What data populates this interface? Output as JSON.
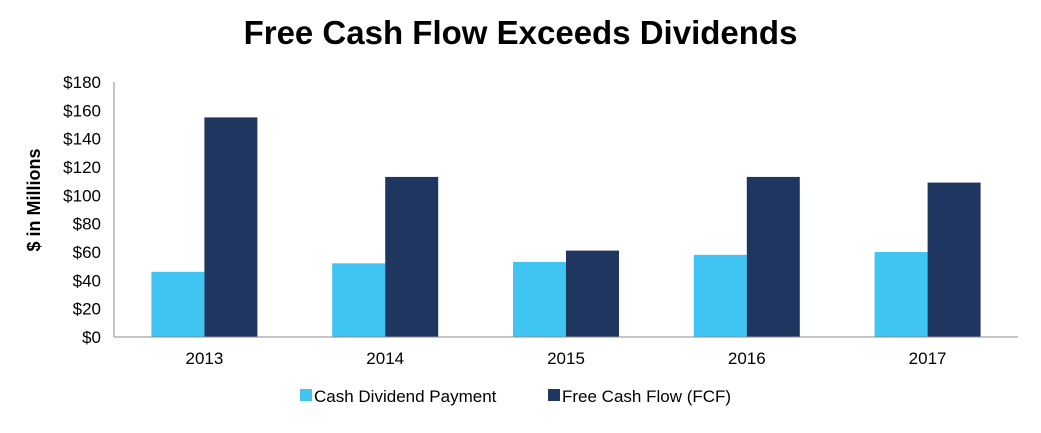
{
  "chart_data": {
    "type": "bar",
    "title": "Free Cash Flow Exceeds Dividends",
    "xlabel": "",
    "ylabel": "$ in Millions",
    "categories": [
      "2013",
      "2014",
      "2015",
      "2016",
      "2017"
    ],
    "series": [
      {
        "name": "Cash Dividend Payment",
        "color": "#40C4F2",
        "values": [
          46,
          52,
          53,
          58,
          60
        ]
      },
      {
        "name": "Free Cash Flow (FCF)",
        "color": "#1F3760",
        "values": [
          155,
          113,
          61,
          113,
          109
        ]
      }
    ],
    "ylim": [
      0,
      180
    ],
    "yticks": [
      0,
      20,
      40,
      60,
      80,
      100,
      120,
      140,
      160,
      180
    ],
    "ytick_labels": [
      "$0",
      "$20",
      "$40",
      "$60",
      "$80",
      "$100",
      "$120",
      "$140",
      "$160",
      "$180"
    ],
    "grid": false,
    "legend_position": "bottom"
  }
}
